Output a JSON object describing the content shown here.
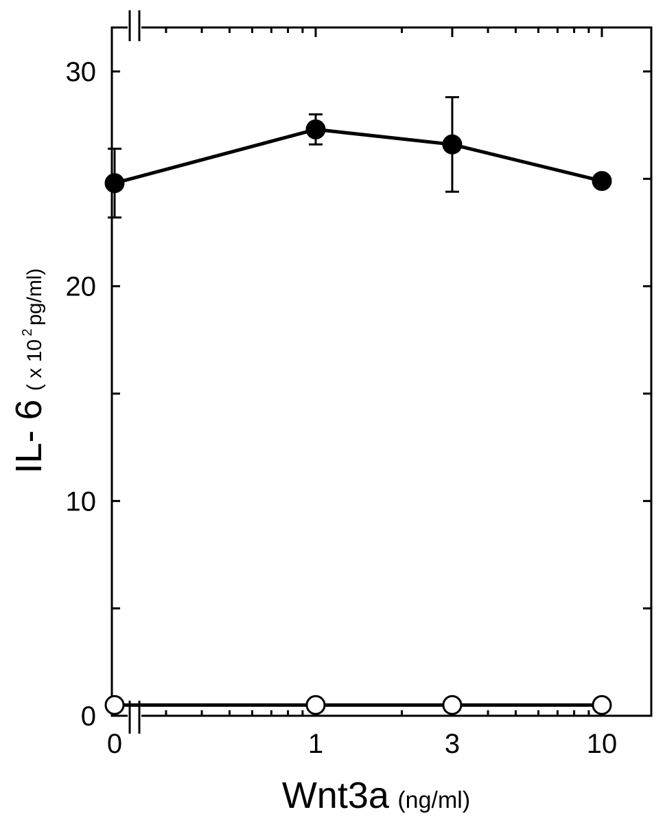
{
  "chart_data": {
    "type": "line",
    "title": "",
    "x_tick_labels": [
      "0",
      "1",
      "3",
      "10"
    ],
    "y_tick_labels": [
      "0",
      "10",
      "20",
      "30"
    ],
    "ylim": [
      0,
      30
    ],
    "x_scale": "log (with axis break between 0 and 1)",
    "y_axis_break": true,
    "grid": false,
    "xlabel": {
      "main": "Wnt3a",
      "unit": "(ng/ml)"
    },
    "ylabel": {
      "main": "IL- 6",
      "paren_open": "( x 10",
      "exponent": "2",
      "unit": " pg/ml)"
    },
    "x": [
      0,
      1,
      3,
      10
    ],
    "series": [
      {
        "style": "filled-circle",
        "values": [
          24.8,
          27.3,
          26.6,
          24.9
        ],
        "error": [
          1.6,
          0.7,
          2.2,
          0.2
        ]
      },
      {
        "style": "open-circle",
        "values": [
          0.5,
          0.5,
          0.5,
          0.5
        ],
        "error": [
          0,
          0,
          0,
          0
        ]
      }
    ]
  }
}
